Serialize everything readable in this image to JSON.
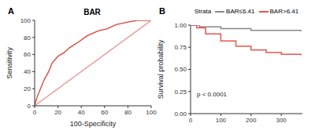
{
  "chart_data": [
    {
      "type": "line",
      "panel_label": "A",
      "title": "BAR",
      "x_label": "100-Specificity",
      "y_label": "Sensitivity",
      "xlim": [
        0,
        100
      ],
      "ylim": [
        0,
        100
      ],
      "xticks": [
        0,
        20,
        40,
        60,
        80,
        100
      ],
      "yticks": [
        0,
        20,
        40,
        60,
        80,
        100
      ],
      "grid": false,
      "series": [
        {
          "color": "#e03c31",
          "line_style": "solid",
          "x": [
            0,
            2,
            5,
            8,
            12,
            15,
            20,
            25,
            30,
            38,
            45,
            55,
            62,
            70,
            80,
            88,
            100
          ],
          "values": [
            0,
            10,
            20,
            30,
            40,
            50,
            58,
            62,
            68,
            75,
            82,
            88,
            90,
            95,
            98,
            100,
            100
          ]
        },
        {
          "color": "#e8a0a0",
          "line_style": "solid",
          "x": [
            0,
            100
          ],
          "values": [
            0,
            100
          ]
        }
      ]
    },
    {
      "type": "line",
      "panel_label": "B",
      "y_label": "Survival probability",
      "legend_title": "Strata",
      "legend": "top",
      "annotation": "p < 0.0001",
      "xlim": [
        0,
        370
      ],
      "ylim": [
        0,
        1
      ],
      "xticks": [
        0,
        100,
        200,
        300
      ],
      "yticks": [
        {
          "value": 0,
          "label": "0.00"
        },
        {
          "value": 0.25,
          "label": "0.25"
        },
        {
          "value": 0.5,
          "label": "0.50"
        },
        {
          "value": 0.75,
          "label": "0.75"
        },
        {
          "value": 1,
          "label": "1.00"
        }
      ],
      "grid": false,
      "series": [
        {
          "name": "BAR≤6.41",
          "color": "#888888",
          "line_style": "step",
          "x": [
            0,
            30,
            100,
            200,
            365
          ],
          "values": [
            1,
            0.98,
            0.96,
            0.94,
            0.93
          ]
        },
        {
          "name": "BAR>6.41",
          "color": "#e8554e",
          "line_style": "step",
          "x": [
            0,
            20,
            50,
            100,
            150,
            200,
            250,
            300,
            365
          ],
          "values": [
            1,
            0.97,
            0.9,
            0.82,
            0.76,
            0.72,
            0.69,
            0.67,
            0.66
          ]
        }
      ]
    }
  ]
}
